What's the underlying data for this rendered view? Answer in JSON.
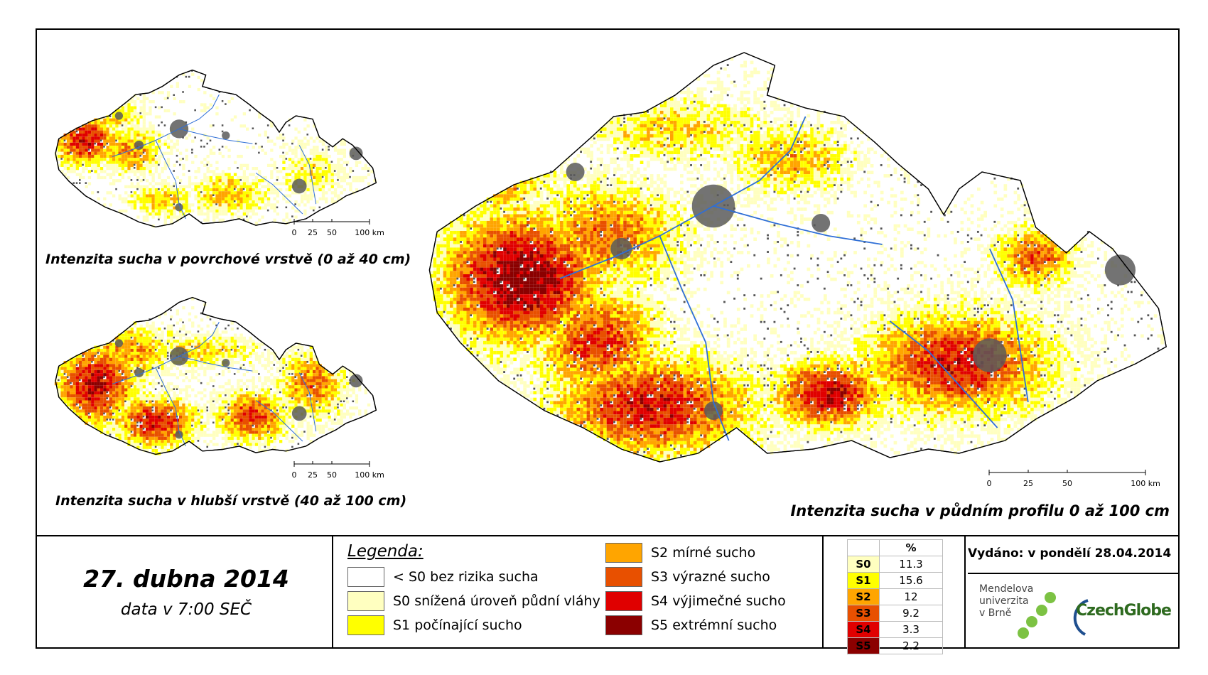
{
  "maps": {
    "surface": {
      "caption": "Intenzita sucha v povrchové vrstvě (0 až 40 cm)",
      "scale": [
        "0",
        "25",
        "50",
        "100 km"
      ]
    },
    "deep": {
      "caption": "Intenzita sucha v hlubší vrstvě (40 až 100 cm)",
      "scale": [
        "0",
        "25",
        "50",
        "100 km"
      ]
    },
    "profile": {
      "caption": "Intenzita sucha v půdním profilu 0 až 100 cm",
      "scale": [
        "0",
        "25",
        "50",
        "100 km"
      ]
    }
  },
  "date": {
    "title": "27. dubna 2014",
    "subtitle": "data v 7:00 SEČ"
  },
  "legend": {
    "title": "Legenda:",
    "items": [
      {
        "label": "< S0 bez rizika sucha",
        "color": "#ffffff"
      },
      {
        "label": "S0 snížená úroveň půdní vláhy",
        "color": "#ffffc0"
      },
      {
        "label": "S1 počínající sucho",
        "color": "#ffff00"
      },
      {
        "label": "S2 mírné sucho",
        "color": "#ffa500"
      },
      {
        "label": "S3 výrazné sucho",
        "color": "#e85000"
      },
      {
        "label": "S4 výjimečné sucho",
        "color": "#e00000"
      },
      {
        "label": "S5 extrémní sucho",
        "color": "#8b0000"
      }
    ]
  },
  "percent_table": {
    "header": "%",
    "rows": [
      {
        "class": "S0",
        "value": "11.3",
        "color": "#ffffc0",
        "text_color": "#000000"
      },
      {
        "class": "S1",
        "value": "15.6",
        "color": "#ffff00",
        "text_color": "#000000"
      },
      {
        "class": "S2",
        "value": "12",
        "color": "#ffa500",
        "text_color": "#000000"
      },
      {
        "class": "S3",
        "value": "9.2",
        "color": "#e85000",
        "text_color": "#000000"
      },
      {
        "class": "S4",
        "value": "3.3",
        "color": "#e00000",
        "text_color": "#000000"
      },
      {
        "class": "S5",
        "value": "2.2",
        "color": "#8b0000",
        "text_color": "#000000"
      }
    ]
  },
  "issued": "Vydáno: v pondělí 28.04.2014",
  "logos": {
    "mendel_lines": [
      "Mendelova",
      "univerzita",
      "v Brně"
    ],
    "czechglobe": "CzechGlobe",
    "dot_color": "#7cc243"
  }
}
